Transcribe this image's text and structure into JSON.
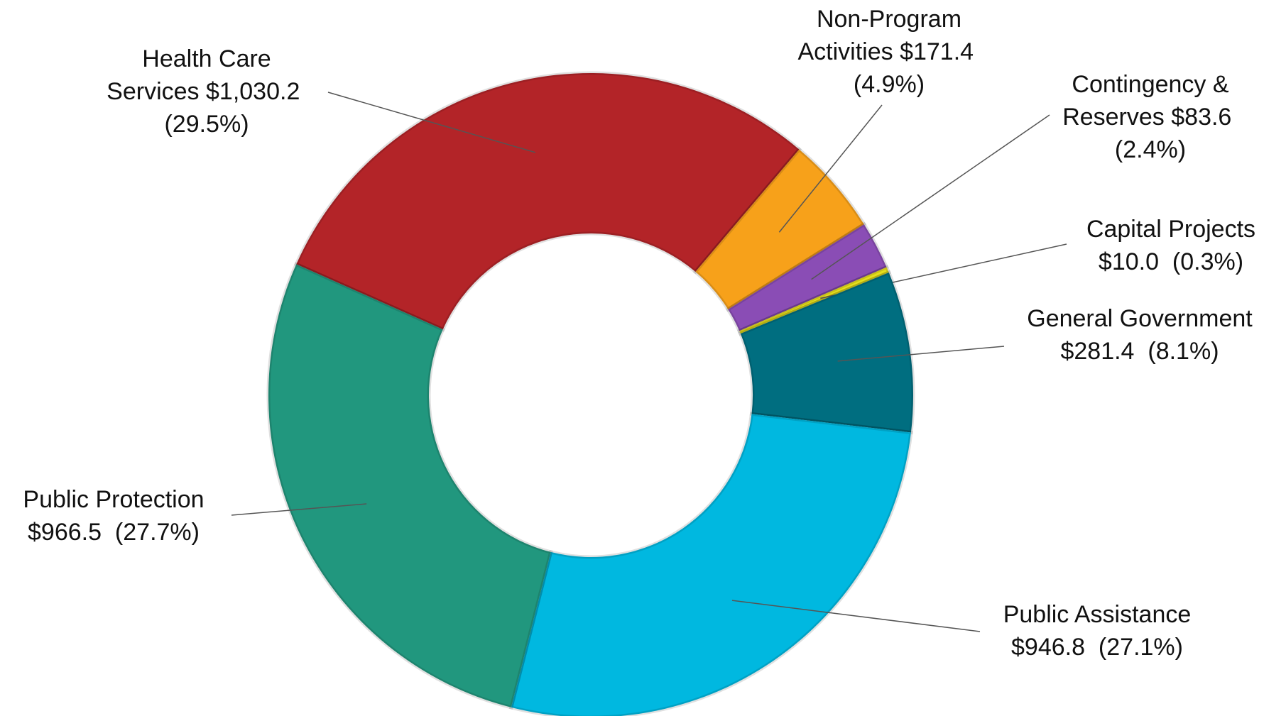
{
  "chart_data": {
    "type": "donut",
    "categories": [
      "Health Care Services",
      "Non-Program Activities",
      "Contingency & Reserves",
      "Capital Projects",
      "General Government",
      "Public Assistance",
      "Public Protection"
    ],
    "values": [
      1030.2,
      171.4,
      83.6,
      10.0,
      281.4,
      946.8,
      966.5
    ],
    "value_labels": [
      "$1,030.2",
      "$171.4",
      "$83.6",
      "$10.0",
      "$281.4",
      "$946.8",
      "$966.5"
    ],
    "shares": [
      29.5,
      4.9,
      2.4,
      0.3,
      8.1,
      27.1,
      27.7
    ],
    "share_labels": [
      "(29.5%)",
      "(4.9%)",
      "(2.4%)",
      "(0.3%)",
      "(8.1%)",
      "(27.1%)",
      "(27.7%)"
    ],
    "colors": [
      "#b32428",
      "#f7a11a",
      "#8a4db5",
      "#e6df1c",
      "#006e80",
      "#00b8e0",
      "#21977e"
    ]
  }
}
